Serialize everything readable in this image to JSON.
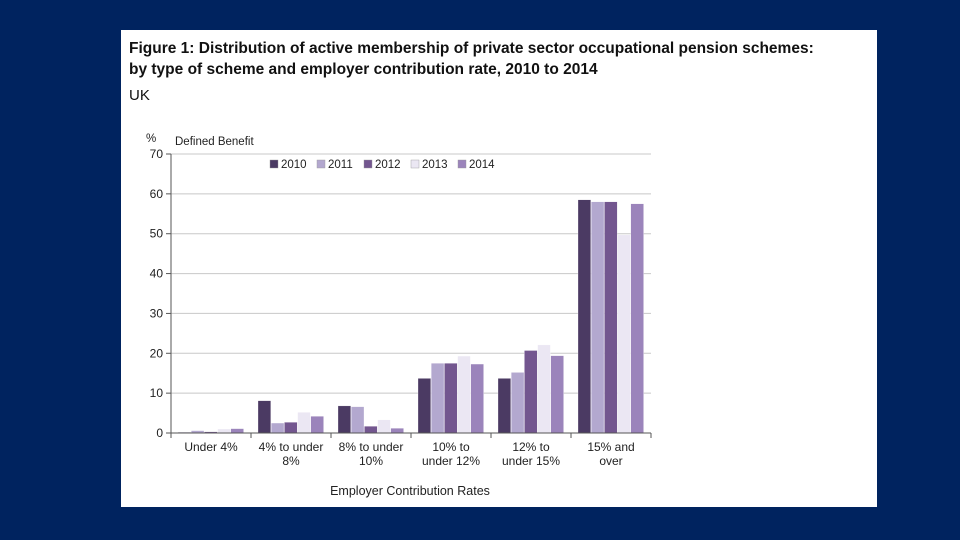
{
  "figure": {
    "title_line1": "Figure 1: Distribution of active membership of private sector occupational pension schemes:",
    "title_line2": "by type of scheme and employer contribution rate, 2010 to 2014",
    "region": "UK"
  },
  "chart_data": {
    "type": "bar",
    "subtitle": "Defined Benefit",
    "ylabel": "%",
    "xlabel": "Employer Contribution Rates",
    "ylim": [
      0,
      70
    ],
    "yticks": [
      0,
      10,
      20,
      30,
      40,
      50,
      60,
      70
    ],
    "grid": true,
    "legend_position": "top",
    "categories": [
      [
        "Under 4%"
      ],
      [
        "4% to under",
        "8%"
      ],
      [
        "8% to under",
        "10%"
      ],
      [
        "10% to",
        "under 12%"
      ],
      [
        "12% to",
        "under 15%"
      ],
      [
        "15% and",
        "over"
      ]
    ],
    "series": [
      {
        "name": "2010",
        "color": "#4b3a63",
        "values": [
          0.2,
          8.1,
          6.8,
          13.7,
          13.7,
          58.5
        ]
      },
      {
        "name": "2011",
        "color": "#b3a8cf",
        "values": [
          0.6,
          2.5,
          6.6,
          17.5,
          15.2,
          58.0
        ]
      },
      {
        "name": "2012",
        "color": "#73568f",
        "values": [
          0.3,
          2.7,
          1.7,
          17.5,
          20.7,
          58.0
        ]
      },
      {
        "name": "2013",
        "color": "#ebe7f3",
        "values": [
          1.0,
          5.2,
          3.3,
          19.3,
          22.1,
          49.7
        ]
      },
      {
        "name": "2014",
        "color": "#9b84bb",
        "values": [
          1.1,
          4.2,
          1.2,
          17.3,
          19.4,
          57.5
        ]
      }
    ]
  }
}
